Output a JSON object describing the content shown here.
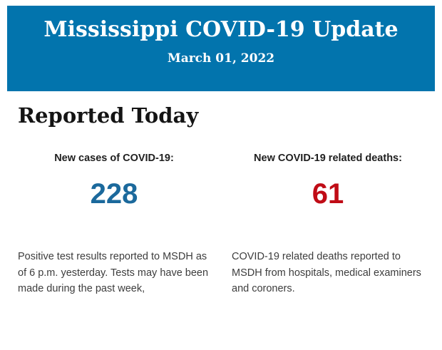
{
  "header": {
    "title": "Mississippi COVID-19 Update",
    "date": "March 01, 2022",
    "background_color": "#0274ad",
    "text_color": "#ffffff"
  },
  "section": {
    "title": "Reported Today"
  },
  "stats": [
    {
      "label": "New cases of COVID-19:",
      "value": "228",
      "value_color": "#1b699c",
      "description": "Positive test results reported to MSDH as of 6 p.m. yesterday. Tests may have been made during the past week,"
    },
    {
      "label": "New COVID-19 related deaths:",
      "value": "61",
      "value_color": "#c00c16",
      "description": "COVID-19 related deaths reported to MSDH from hospitals, medical examiners and coroners."
    }
  ]
}
